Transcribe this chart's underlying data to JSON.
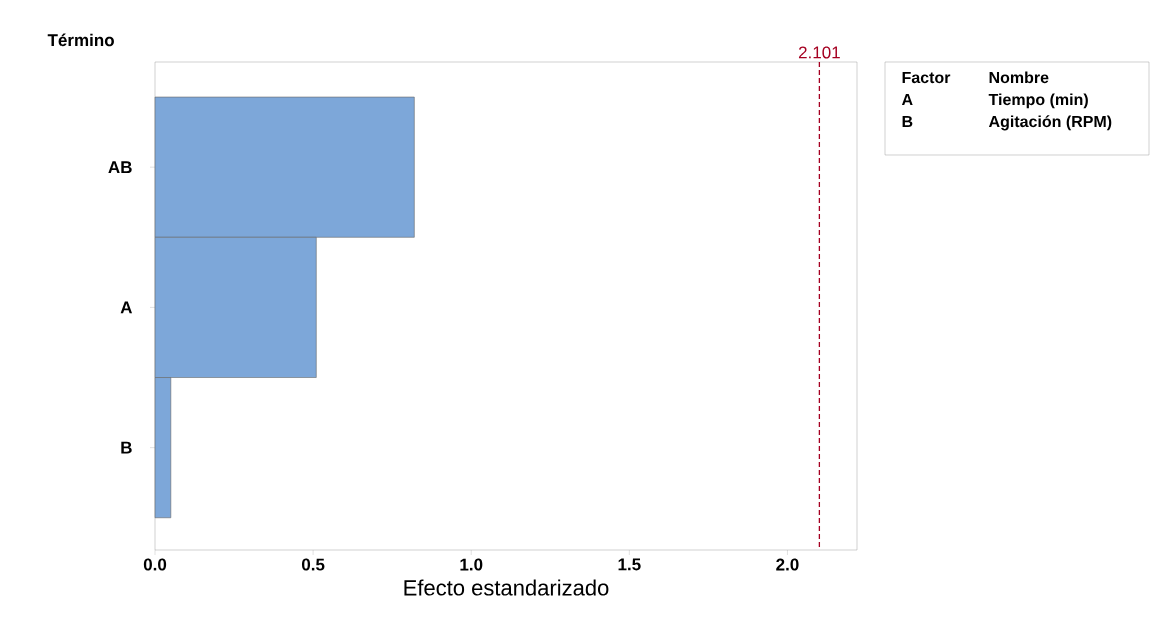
{
  "chart_data": {
    "type": "bar",
    "orientation": "horizontal",
    "xlabel": "Efecto estandarizado",
    "ylabel": "Término",
    "categories": [
      "AB",
      "A",
      "B"
    ],
    "values": [
      0.82,
      0.51,
      0.05
    ],
    "color": "#7da7d9",
    "xlim": [
      0,
      2.22
    ],
    "xticks": [
      {
        "value": 0,
        "label": "0.0"
      },
      0.5,
      {
        "value": 1,
        "label": "1.0"
      },
      1.5,
      {
        "value": 2,
        "label": "2.0"
      }
    ],
    "ref_lines": [
      {
        "axis": "x",
        "value": 2.101,
        "label": "2.101",
        "color": "#a50021",
        "line_style": "dashed"
      }
    ],
    "annotations": [
      "Factor",
      "Nombre",
      "A",
      "Tiempo (min)",
      "B",
      "Agitación (RPM)"
    ],
    "grid": false
  }
}
